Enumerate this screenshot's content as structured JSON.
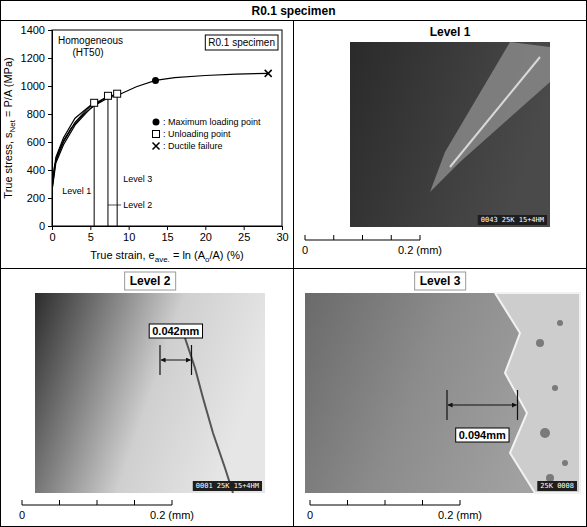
{
  "title": "R0.1 specimen",
  "chart_data": {
    "type": "line",
    "xlabel": [
      {
        "text": "True strain, e"
      },
      {
        "text": "ave.",
        "sub": true
      },
      {
        "text": " = ln (A"
      },
      {
        "text": "o",
        "sub": true
      },
      {
        "text": "/A) (%)"
      }
    ],
    "ylabel": [
      {
        "text": "True stress, s"
      },
      {
        "text": "Net",
        "sub": true
      },
      {
        "text": " = P/A (MPa)"
      }
    ],
    "xlim": [
      0,
      30
    ],
    "xticks": [
      0,
      5,
      10,
      15,
      20,
      25,
      30
    ],
    "ylim": [
      0,
      1400
    ],
    "yticks": [
      0,
      200,
      400,
      600,
      800,
      1000,
      1200,
      1400
    ],
    "grid": false,
    "color": "#000000",
    "annotations": [
      {
        "text": "Homogeneous"
      },
      {
        "text": "(HT50)"
      },
      {
        "text": "R0.1 specimen"
      }
    ],
    "series": [
      {
        "x": [
          0,
          0.3,
          0.8,
          1.5,
          2.5,
          4,
          5.5,
          7,
          9,
          11,
          13.5,
          16,
          20,
          24,
          28.2
        ],
        "values": [
          270,
          420,
          520,
          610,
          700,
          790,
          860,
          905,
          945,
          995,
          1040,
          1060,
          1075,
          1085,
          1090
        ]
      },
      {
        "name": "Level 1",
        "x": [
          0,
          0.5,
          1.5,
          3,
          4.5,
          5.5
        ],
        "values": [
          260,
          470,
          600,
          740,
          830,
          880
        ]
      },
      {
        "name": "Level 2",
        "x": [
          0,
          0.5,
          1.5,
          3,
          5,
          7.3
        ],
        "values": [
          250,
          450,
          580,
          720,
          840,
          930
        ]
      },
      {
        "name": "Level 3",
        "x": [
          0,
          0.5,
          1.5,
          3,
          5,
          7,
          8.5
        ],
        "values": [
          280,
          490,
          630,
          770,
          860,
          915,
          945
        ]
      }
    ],
    "points": [
      {
        "label": ": Maximum loading point",
        "marker": "circle",
        "x": [
          13.5
        ],
        "y": [
          1040
        ]
      },
      {
        "label": ": Unloading point",
        "marker": "square",
        "x": [
          5.5,
          7.3,
          8.5
        ],
        "y": [
          880,
          930,
          945
        ]
      },
      {
        "label": ": Ductile failure",
        "marker": "x",
        "x": [
          28.2
        ],
        "y": [
          1090
        ]
      }
    ],
    "legend": "right"
  },
  "panels": [
    {
      "title": "Level 1",
      "caption": "0043 25K 15+4HM",
      "scale_ticks": [
        0,
        0.05,
        0.1,
        0.15,
        0.2
      ],
      "scale_labels": [
        {
          "value": 0,
          "label": "0"
        },
        {
          "value": 0.2,
          "label": "0.2 (mm)"
        }
      ]
    },
    {
      "title": "Level 2",
      "caption": "0001 25K 15+4HM",
      "measurement": {
        "value": 0.042,
        "label": "0.042mm"
      },
      "scale_ticks": [
        0,
        0.05,
        0.1,
        0.15,
        0.2
      ],
      "scale_labels": [
        {
          "value": 0,
          "label": "0"
        },
        {
          "value": 0.2,
          "label": "0.2 (mm)"
        }
      ]
    },
    {
      "title": "Level 3",
      "caption": "25K 0008",
      "measurement": {
        "value": 0.094,
        "label": "0.094mm"
      },
      "scale_ticks": [
        0,
        0.05,
        0.1,
        0.15,
        0.2
      ],
      "scale_labels": [
        {
          "value": 0,
          "label": "0"
        },
        {
          "value": 0.2,
          "label": "0.2 (mm)"
        }
      ]
    }
  ]
}
